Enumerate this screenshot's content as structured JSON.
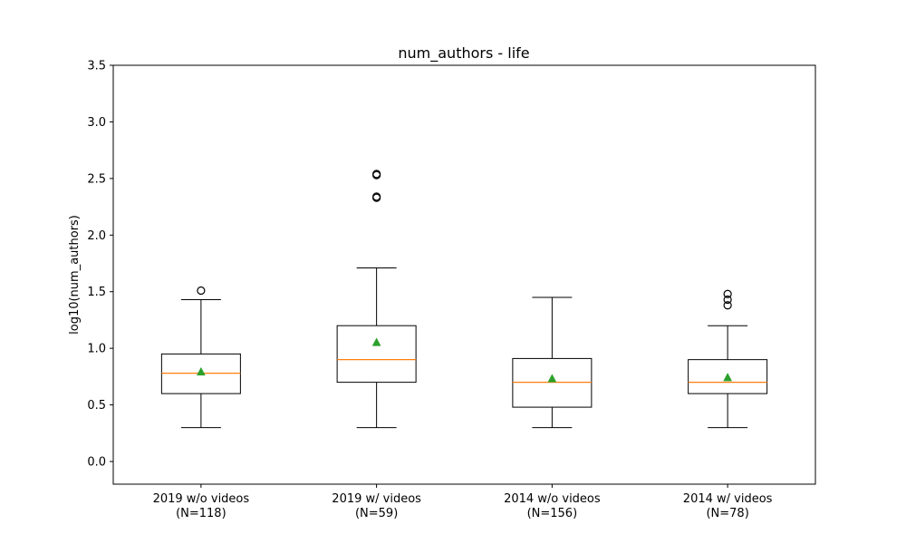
{
  "chart_data": {
    "type": "box",
    "title": "num_authors - life",
    "ylabel": "log10(num_authors)",
    "xlabel": "",
    "ylim": [
      -0.2,
      3.5
    ],
    "yticks": [
      "0.0",
      "0.5",
      "1.0",
      "1.5",
      "2.0",
      "2.5",
      "3.0",
      "3.5"
    ],
    "yticks_values": [
      0.0,
      0.5,
      1.0,
      1.5,
      2.0,
      2.5,
      3.0,
      3.5
    ],
    "grid": false,
    "categories": [
      {
        "label": "2019 w/o videos",
        "n_label": "(N=118)"
      },
      {
        "label": "2019 w/ videos",
        "n_label": "(N=59)"
      },
      {
        "label": "2014 w/o videos",
        "n_label": "(N=156)"
      },
      {
        "label": "2014 w/ videos",
        "n_label": "(N=78)"
      }
    ],
    "boxes": [
      {
        "whisker_low": 0.3,
        "q1": 0.6,
        "median": 0.78,
        "q3": 0.95,
        "whisker_high": 1.43,
        "mean": 0.79,
        "outliers": [
          1.51
        ]
      },
      {
        "whisker_low": 0.3,
        "q1": 0.7,
        "median": 0.9,
        "q3": 1.2,
        "whisker_high": 1.71,
        "mean": 1.05,
        "outliers": [
          2.33,
          2.34,
          2.53,
          2.54
        ]
      },
      {
        "whisker_low": 0.3,
        "q1": 0.48,
        "median": 0.7,
        "q3": 0.91,
        "whisker_high": 1.45,
        "mean": 0.73,
        "outliers": []
      },
      {
        "whisker_low": 0.3,
        "q1": 0.6,
        "median": 0.7,
        "q3": 0.9,
        "whisker_high": 1.2,
        "mean": 0.74,
        "outliers": [
          1.38,
          1.43,
          1.48
        ]
      }
    ],
    "colors": {
      "box": "#000000",
      "median": "#ff7f0e",
      "mean": "#2ca02c",
      "outlier": "#000000"
    }
  }
}
